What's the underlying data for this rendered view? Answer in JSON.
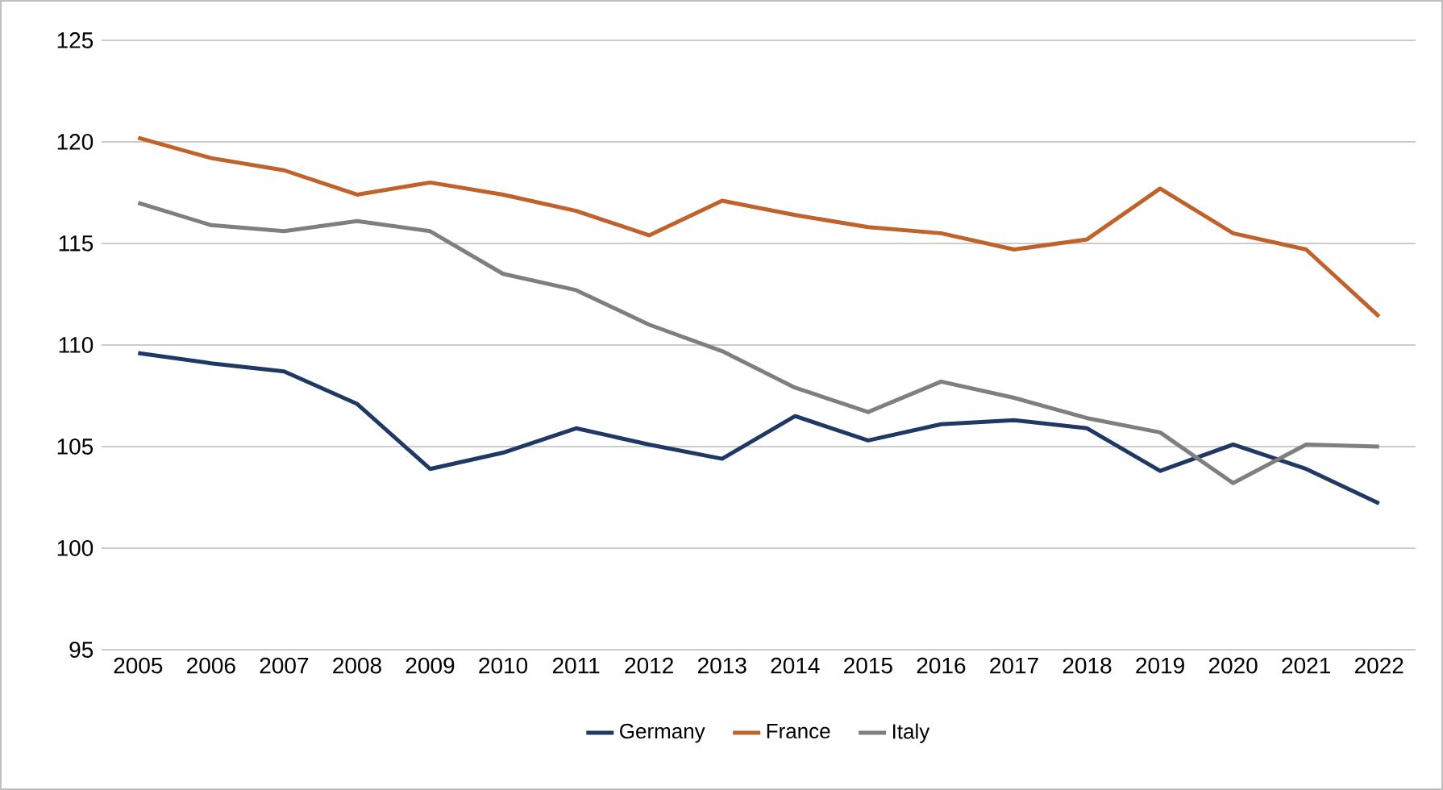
{
  "chart_data": {
    "type": "line",
    "categories": [
      "2005",
      "2006",
      "2007",
      "2008",
      "2009",
      "2010",
      "2011",
      "2012",
      "2013",
      "2014",
      "2015",
      "2016",
      "2017",
      "2018",
      "2019",
      "2020",
      "2021",
      "2022"
    ],
    "series": [
      {
        "name": "Germany",
        "color": "#1f3864",
        "values": [
          109.6,
          109.1,
          108.7,
          107.1,
          103.9,
          104.7,
          105.9,
          105.1,
          104.4,
          106.5,
          105.3,
          106.1,
          106.3,
          105.9,
          103.8,
          105.1,
          103.9,
          102.2
        ]
      },
      {
        "name": "France",
        "color": "#c0622b",
        "values": [
          120.2,
          119.2,
          118.6,
          117.4,
          118.0,
          117.4,
          116.6,
          115.4,
          117.1,
          116.4,
          115.8,
          115.5,
          114.7,
          115.2,
          117.7,
          115.5,
          114.7,
          111.4
        ]
      },
      {
        "name": "Italy",
        "color": "#7f7f7f",
        "values": [
          117.0,
          115.9,
          115.6,
          116.1,
          115.6,
          113.5,
          112.7,
          111.0,
          109.7,
          107.9,
          106.7,
          108.2,
          107.4,
          106.4,
          105.7,
          103.2,
          105.1,
          105.0
        ]
      }
    ],
    "ylim": [
      95,
      125
    ],
    "yticks": [
      95,
      100,
      105,
      110,
      115,
      120,
      125
    ],
    "grid": "y",
    "legend": "bottom",
    "marker": "none",
    "line_style": "solid"
  }
}
